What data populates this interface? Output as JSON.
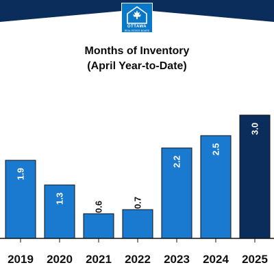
{
  "header": {
    "logo": {
      "icon": "maple-leaf-house-icon",
      "brand_text": "OTTAWA",
      "sub_text": "REAL ESTATE BOARD"
    },
    "colors": {
      "banner": "#0b2d5c",
      "logo_bg": "#0a78c8"
    }
  },
  "chart_data": {
    "type": "bar",
    "title": "Months of Inventory",
    "subtitle": "(April Year-to-Date)",
    "categories": [
      "2019",
      "2020",
      "2021",
      "2022",
      "2023",
      "2024",
      "2025"
    ],
    "values": [
      1.9,
      1.3,
      0.6,
      0.7,
      2.2,
      2.5,
      3.0
    ],
    "data_labels": [
      "1.9",
      "1.3",
      "0.6",
      "0.7",
      "2.2",
      "2.5",
      "3.0"
    ],
    "ylim": [
      0,
      3.8
    ],
    "grid": false,
    "colors": {
      "bar": "#1a7ad0",
      "highlight_bar": "#0b2d5c",
      "highlight_category": "2025",
      "outline": "#111111"
    }
  }
}
